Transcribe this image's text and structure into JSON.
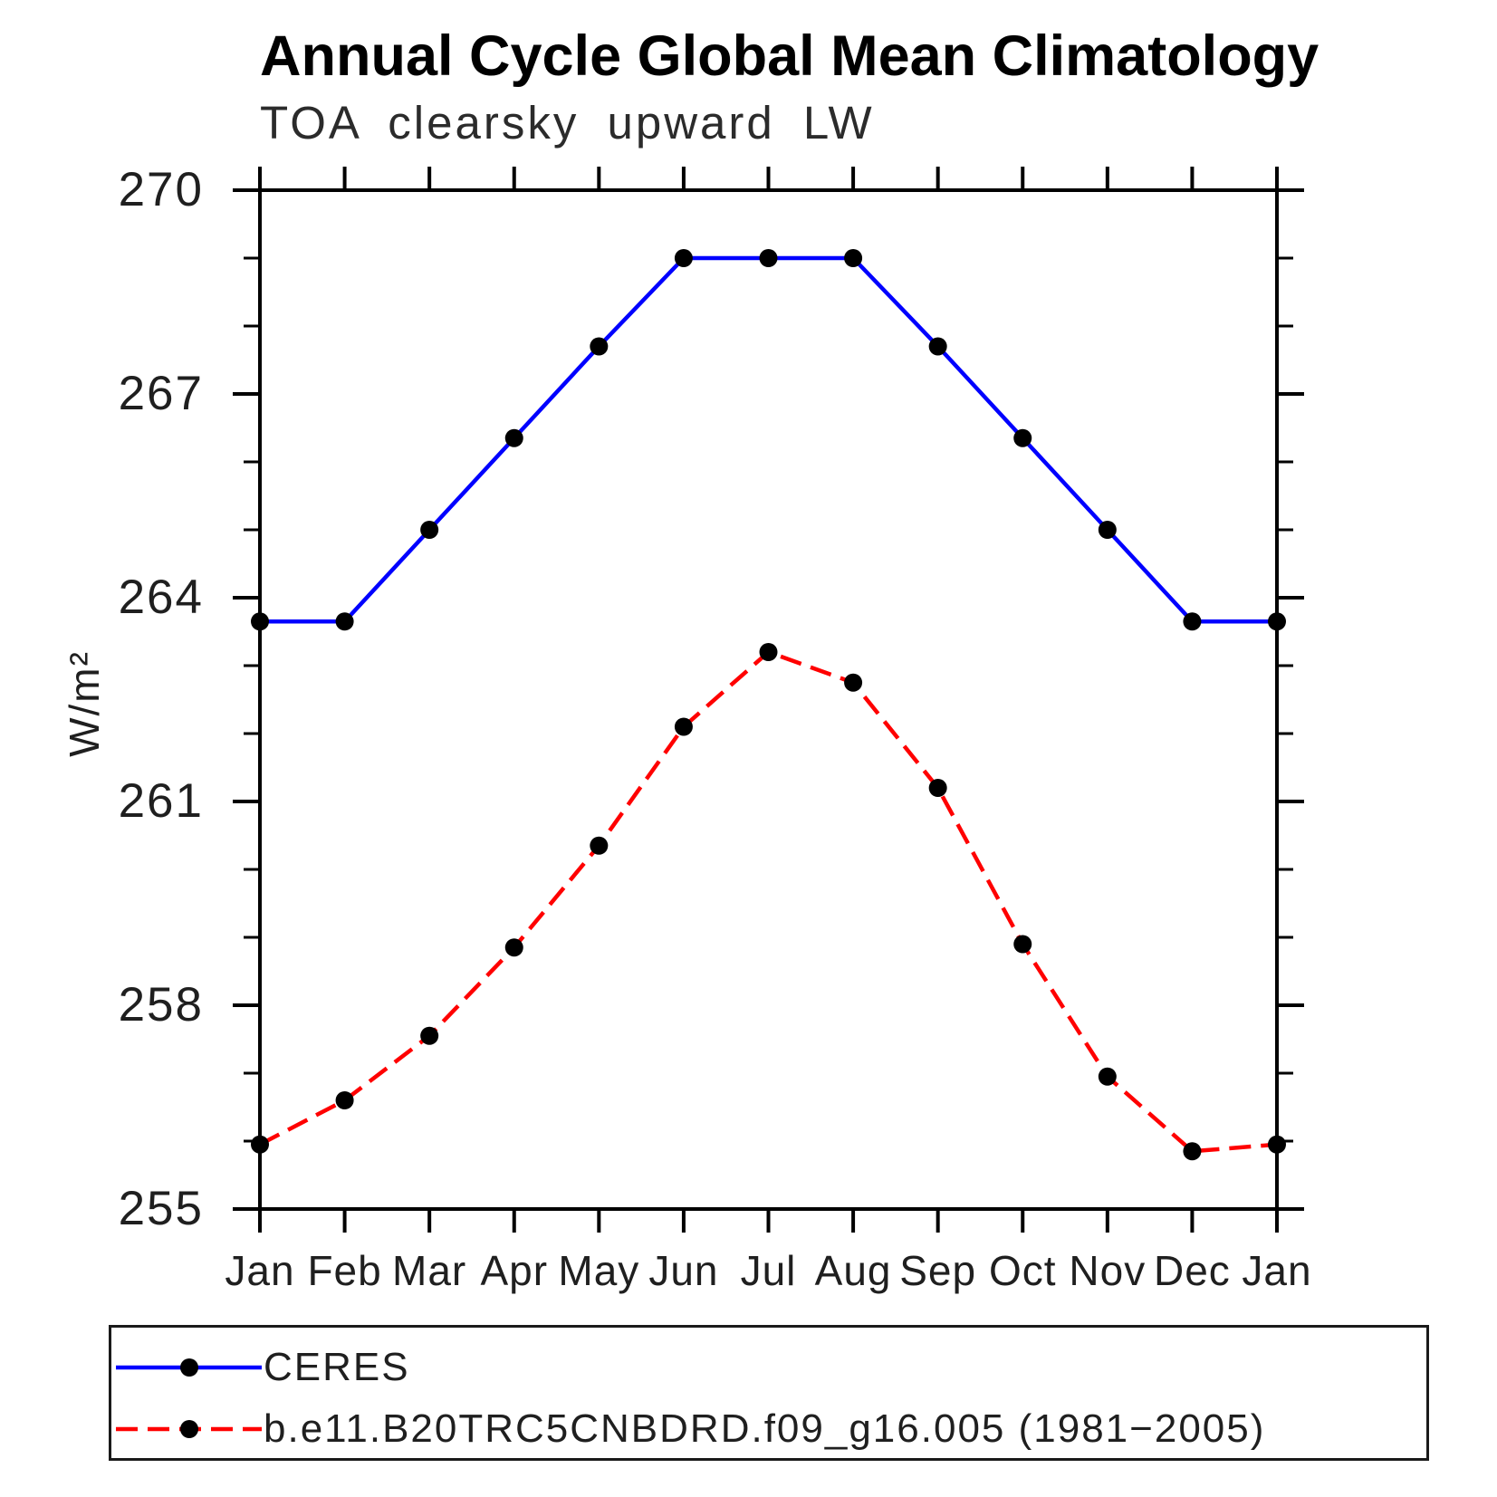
{
  "page": {
    "background": "#ffffff"
  },
  "chart_data": {
    "type": "line",
    "title": "Annual Cycle Global Mean Climatology",
    "subtitle": "TOA clearsky upward LW",
    "ylabel": "W/m²",
    "xlabel": "",
    "categories": [
      "Jan",
      "Feb",
      "Mar",
      "Apr",
      "May",
      "Jun",
      "Jul",
      "Aug",
      "Sep",
      "Oct",
      "Nov",
      "Dec",
      "Jan"
    ],
    "ylim": [
      255,
      270
    ],
    "ytick_major": [
      255,
      258,
      261,
      264,
      267,
      270
    ],
    "ytick_minor_step": 1,
    "grid": false,
    "legend_position": "bottom-box",
    "axis_color": "#000000",
    "marker": {
      "shape": "circle",
      "color": "#000000",
      "radius": 10
    },
    "series": [
      {
        "name": "CERES",
        "color": "#0000ff",
        "line_style": "solid",
        "values": [
          263.65,
          263.65,
          265.0,
          266.35,
          267.7,
          269.0,
          269.0,
          269.0,
          267.7,
          266.35,
          265.0,
          263.65,
          263.65
        ]
      },
      {
        "name": "b.e11.B20TRC5CNBDRD.f09_g16.005 (1981−2005)",
        "color": "#ff0000",
        "line_style": "dashed",
        "values": [
          255.95,
          256.6,
          257.55,
          258.85,
          260.35,
          262.1,
          263.2,
          262.75,
          261.2,
          258.9,
          256.95,
          255.85,
          255.95
        ]
      }
    ]
  }
}
